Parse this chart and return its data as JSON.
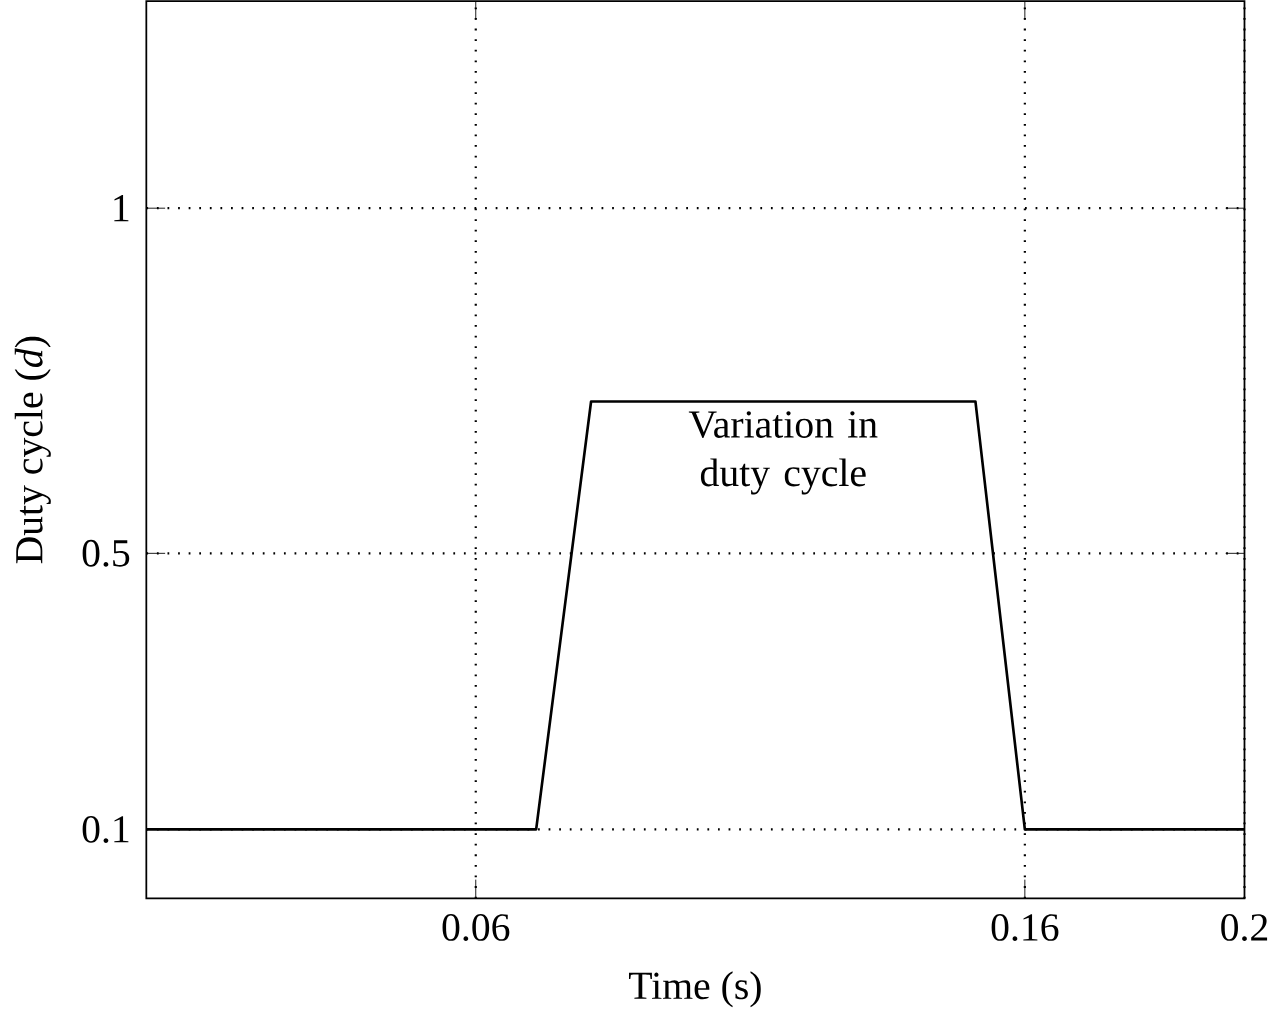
{
  "chart_data": {
    "type": "line",
    "xlabel": "Time (s)",
    "ylabel": "Duty cycle (*d*)",
    "x": [
      0,
      0.071,
      0.081,
      0.151,
      0.16,
      0.2
    ],
    "values": [
      0.1,
      0.1,
      0.72,
      0.72,
      0.1,
      0.1
    ],
    "color": "#000000",
    "xlim": [
      0,
      0.2
    ],
    "xticks": [
      0.06,
      0.16,
      0.2
    ],
    "ylim": [
      0,
      1.3
    ],
    "yticks": [
      0.1,
      0.5,
      1
    ],
    "grid": true,
    "marker": "none",
    "line_style": "solid",
    "annotations": [
      {
        "text": "Variation in duty cycle",
        "x": 0.116,
        "y": 0.72
      }
    ]
  }
}
